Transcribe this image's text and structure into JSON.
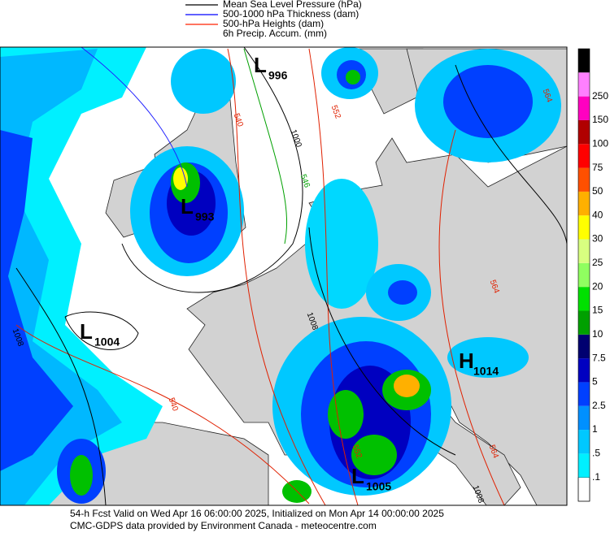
{
  "legend": [
    {
      "label": "Mean Sea Level Pressure (hPa)",
      "color": "#000000"
    },
    {
      "label": "500-1000 hPa Thickness (dam)",
      "color": "#0000ff"
    },
    {
      "label": "500-hPa Heights (dam)",
      "color": "#ff2000"
    },
    {
      "label": "6h Precip. Accum. (mm)"
    }
  ],
  "colorbar": [
    {
      "label": ".1",
      "color": "#00f0ff"
    },
    {
      "label": ".5",
      "color": "#00c8ff"
    },
    {
      "label": "1",
      "color": "#0090ff"
    },
    {
      "label": "2.5",
      "color": "#0040ff"
    },
    {
      "label": "5",
      "color": "#0000c0"
    },
    {
      "label": "7.5",
      "color": "#000070"
    },
    {
      "label": "10",
      "color": "#00a000"
    },
    {
      "label": "15",
      "color": "#00e000"
    },
    {
      "label": "20",
      "color": "#90ff60"
    },
    {
      "label": "25",
      "color": "#d8ff80"
    },
    {
      "label": "30",
      "color": "#ffff00"
    },
    {
      "label": "40",
      "color": "#ffb000"
    },
    {
      "label": "50",
      "color": "#ff5000"
    },
    {
      "label": "75",
      "color": "#ff0000"
    },
    {
      "label": "100",
      "color": "#b00000"
    },
    {
      "label": "150",
      "color": "#ff00c0"
    },
    {
      "label": "250",
      "color": "#ff80ff"
    }
  ],
  "pressure_centers": [
    {
      "letter": "L",
      "value": "996"
    },
    {
      "letter": "L",
      "value": "993"
    },
    {
      "letter": "L",
      "value": "1004"
    },
    {
      "letter": "H",
      "value": "1014"
    },
    {
      "letter": "L",
      "value": "1005"
    }
  ],
  "contour_labels": [
    "540",
    "546",
    "552",
    "564",
    "1000",
    "1008",
    "1008",
    "540",
    "552",
    "564",
    "1008",
    "564"
  ],
  "footer": [
    "54-h Fcst Valid on Wed Apr 16 06:00:00 2025, Initialized on Mon Apr 14 00:00:00 2025",
    "CMC-GDPS data provided by Environment Canada - meteocentre.com"
  ]
}
